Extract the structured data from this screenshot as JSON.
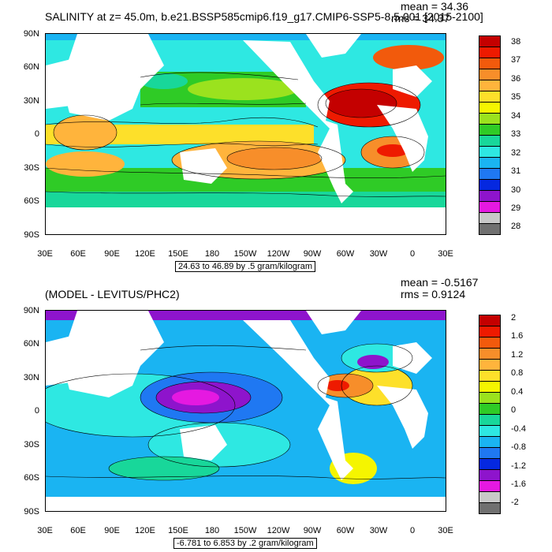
{
  "panels": [
    {
      "title": "SALINITY at z=  45.0m, b.e21.BSSP585cmip6.f19_g17.CMIP6-SSP5-8.5.001 [2015-2100]",
      "mean": "mean = 34.36",
      "rms": "rms = 34.37",
      "info": "24.63 to 46.89 by .5 gram/kilogram",
      "colorbar_labels": [
        "38",
        "37",
        "36",
        "35",
        "34",
        "33",
        "32",
        "31",
        "30",
        "29",
        "28"
      ],
      "colorbar_colors": [
        "#c40000",
        "#ee1a00",
        "#f25a0c",
        "#f78e2a",
        "#ffb43c",
        "#fde02a",
        "#f5f500",
        "#9be21e",
        "#2fcb26",
        "#18d79a",
        "#2ee8e2",
        "#1ab4f2",
        "#1f78f2",
        "#0528e0",
        "#8e14cc",
        "#e519e1",
        "#c8c8c8",
        "#707070"
      ]
    },
    {
      "title": "(MODEL - LEVITUS/PHC2)",
      "mean": "mean = -0.5167",
      "rms": "rms = 0.9124",
      "info": "-6.781 to 6.853 by .2 gram/kilogram",
      "colorbar_labels": [
        "2",
        "1.6",
        "1.2",
        "0.8",
        "0.4",
        "0",
        "-0.4",
        "-0.8",
        "-1.2",
        "-1.6",
        "-2"
      ],
      "colorbar_colors": [
        "#c40000",
        "#ee1a00",
        "#f25a0c",
        "#f78e2a",
        "#ffb43c",
        "#fde02a",
        "#f5f500",
        "#9be21e",
        "#2fcb26",
        "#18d79a",
        "#2ee8e2",
        "#1ab4f2",
        "#1f78f2",
        "#0528e0",
        "#8e14cc",
        "#e519e1",
        "#c8c8c8",
        "#707070"
      ]
    }
  ],
  "axes": {
    "lat_labels": [
      "90N",
      "60N",
      "30N",
      "0",
      "30S",
      "60S",
      "90S"
    ],
    "lon_labels": [
      "30E",
      "60E",
      "90E",
      "120E",
      "150E",
      "180",
      "150W",
      "120W",
      "90W",
      "60W",
      "30W",
      "0",
      "30E"
    ]
  },
  "colors": {
    "land": "#ffffff",
    "outline": "#000000"
  }
}
